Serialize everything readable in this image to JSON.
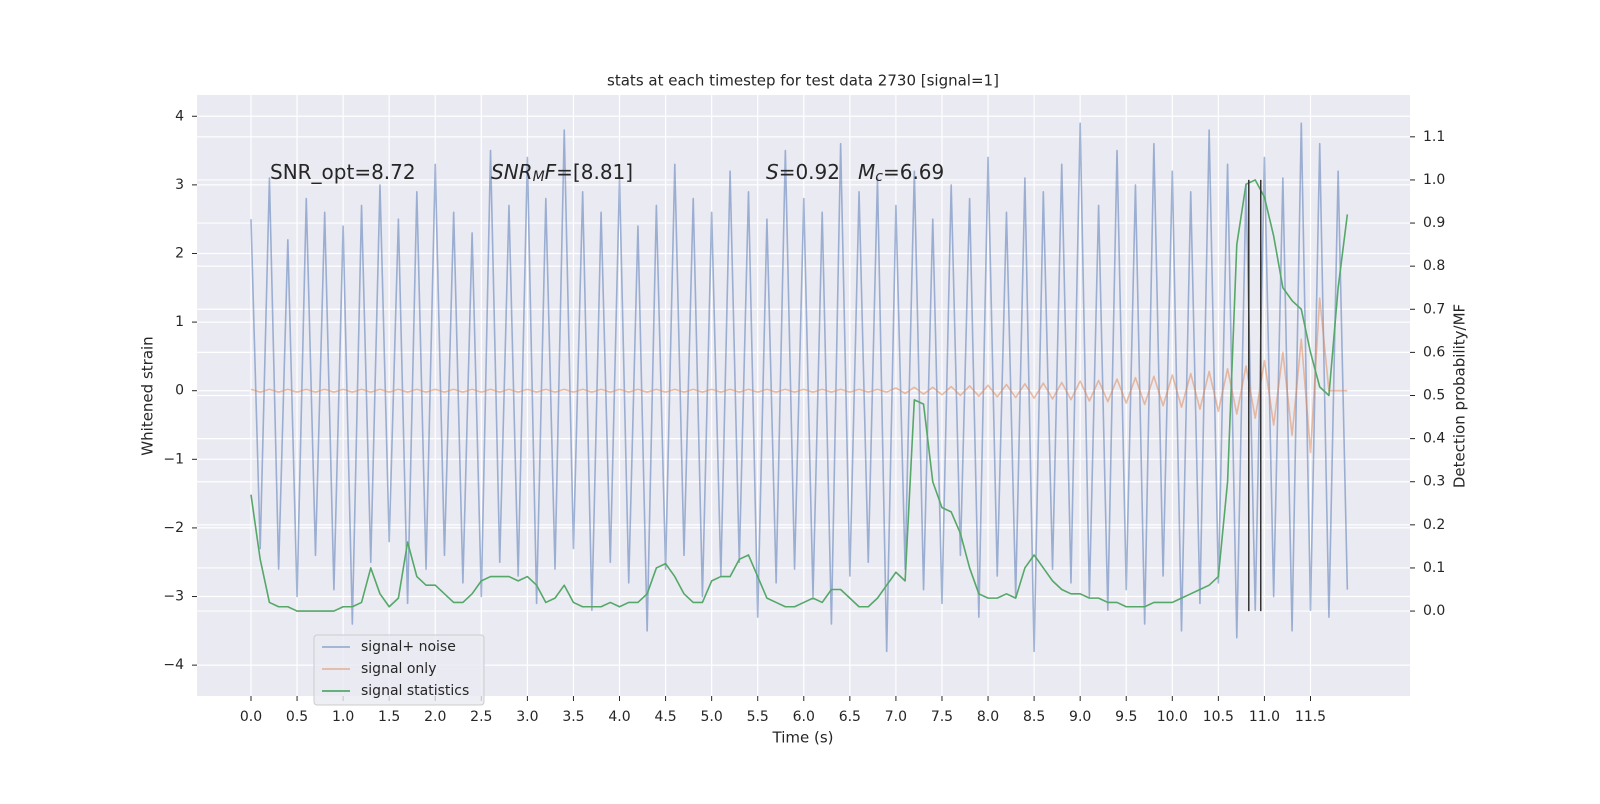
{
  "chart_data": {
    "type": "line",
    "title": "stats at each timestep for test data 2730 [signal=1]",
    "x_label": "Time (s)",
    "y_label": "Whitened strain",
    "y2_label": "Detection probability/MF",
    "grid": true,
    "background": "#eaeaf2",
    "legend": "lower left",
    "xlim": [
      -0.586,
      12.58
    ],
    "ylim": [
      -4.45,
      4.31
    ],
    "y2lim": [
      -0.197,
      1.197
    ],
    "xticks": [
      {
        "value": 0,
        "label": "0.0"
      },
      {
        "value": 0.5,
        "label": "0.5"
      },
      {
        "value": 1,
        "label": "1.0"
      },
      {
        "value": 1.5,
        "label": "1.5"
      },
      {
        "value": 2,
        "label": "2.0"
      },
      {
        "value": 2.5,
        "label": "2.5"
      },
      {
        "value": 3,
        "label": "3.0"
      },
      {
        "value": 3.5,
        "label": "3.5"
      },
      {
        "value": 4,
        "label": "4.0"
      },
      {
        "value": 4.5,
        "label": "4.5"
      },
      {
        "value": 5,
        "label": "5.0"
      },
      {
        "value": 5.5,
        "label": "5.5"
      },
      {
        "value": 6,
        "label": "6.0"
      },
      {
        "value": 6.5,
        "label": "6.5"
      },
      {
        "value": 7,
        "label": "7.0"
      },
      {
        "value": 7.5,
        "label": "7.5"
      },
      {
        "value": 8,
        "label": "8.0"
      },
      {
        "value": 8.5,
        "label": "8.5"
      },
      {
        "value": 9,
        "label": "9.0"
      },
      {
        "value": 9.5,
        "label": "9.5"
      },
      {
        "value": 10,
        "label": "10.0"
      },
      {
        "value": 10.5,
        "label": "10.5"
      },
      {
        "value": 11,
        "label": "11.0"
      },
      {
        "value": 11.5,
        "label": "11.5"
      }
    ],
    "yticks": [
      {
        "value": -4,
        "label": "−4"
      },
      {
        "value": -3,
        "label": "−3"
      },
      {
        "value": -2,
        "label": "−2"
      },
      {
        "value": -1,
        "label": "−1"
      },
      0,
      1,
      2,
      3,
      4
    ],
    "y2ticks": [
      {
        "value": 0,
        "label": "0.0"
      },
      {
        "value": 0.1,
        "label": "0.1"
      },
      {
        "value": 0.2,
        "label": "0.2"
      },
      {
        "value": 0.3,
        "label": "0.3"
      },
      {
        "value": 0.4,
        "label": "0.4"
      },
      {
        "value": 0.5,
        "label": "0.5"
      },
      {
        "value": 0.6,
        "label": "0.6"
      },
      {
        "value": 0.7,
        "label": "0.7"
      },
      {
        "value": 0.8,
        "label": "0.8"
      },
      {
        "value": 0.9,
        "label": "0.9"
      },
      {
        "value": 1.0,
        "label": "1.0"
      },
      {
        "value": 1.1,
        "label": "1.1"
      }
    ],
    "x": [
      0,
      0.1,
      0.2,
      0.3,
      0.4,
      0.5,
      0.6,
      0.7,
      0.8,
      0.9,
      1,
      1.1,
      1.2,
      1.3,
      1.4,
      1.5,
      1.6,
      1.7,
      1.8,
      1.9,
      2,
      2.1,
      2.2,
      2.3,
      2.4,
      2.5,
      2.6,
      2.7,
      2.8,
      2.9,
      3,
      3.1,
      3.2,
      3.3,
      3.4,
      3.5,
      3.6,
      3.7,
      3.8,
      3.9,
      4,
      4.1,
      4.2,
      4.3,
      4.4,
      4.5,
      4.6,
      4.7,
      4.8,
      4.9,
      5,
      5.1,
      5.2,
      5.3,
      5.4,
      5.5,
      5.6,
      5.7,
      5.8,
      5.9,
      6,
      6.1,
      6.2,
      6.3,
      6.4,
      6.5,
      6.6,
      6.7,
      6.8,
      6.9,
      7,
      7.1,
      7.2,
      7.3,
      7.4,
      7.5,
      7.6,
      7.7,
      7.8,
      7.9,
      8,
      8.1,
      8.2,
      8.3,
      8.4,
      8.5,
      8.6,
      8.7,
      8.8,
      8.9,
      9,
      9.1,
      9.2,
      9.3,
      9.4,
      9.5,
      9.6,
      9.7,
      9.8,
      9.9,
      10,
      10.1,
      10.2,
      10.3,
      10.4,
      10.5,
      10.6,
      10.7,
      10.8,
      10.9,
      11,
      11.1,
      11.2,
      11.3,
      11.4,
      11.5,
      11.6,
      11.7,
      11.8,
      11.9
    ],
    "series": [
      {
        "name": "signal+ noise",
        "color": "#4c72b0",
        "opacity": 0.5,
        "values": [
          2.5,
          -2.3,
          3.1,
          -2.6,
          2.2,
          -3.0,
          2.8,
          -2.4,
          2.6,
          -2.9,
          2.4,
          -3.4,
          2.7,
          -2.5,
          3.0,
          -2.2,
          2.5,
          -3.1,
          2.9,
          -2.6,
          3.3,
          -2.4,
          2.6,
          -2.8,
          2.3,
          -3.0,
          3.5,
          -2.5,
          2.7,
          -2.7,
          3.4,
          -3.1,
          2.8,
          -2.6,
          3.8,
          -2.3,
          2.9,
          -3.2,
          2.6,
          -2.5,
          3.1,
          -2.8,
          2.4,
          -3.5,
          2.7,
          -2.6,
          3.3,
          -2.4,
          2.8,
          -3.0,
          2.6,
          -2.7,
          3.2,
          -2.5,
          2.9,
          -3.3,
          2.5,
          -2.8,
          3.5,
          -2.6,
          2.8,
          -3.0,
          2.6,
          -3.4,
          3.6,
          -2.7,
          2.9,
          -2.5,
          3.1,
          -3.8,
          2.7,
          -2.6,
          3.2,
          -2.9,
          2.5,
          -3.1,
          3.0,
          -2.4,
          2.8,
          -3.3,
          3.4,
          -2.7,
          2.6,
          -3.0,
          3.1,
          -3.8,
          2.9,
          -2.6,
          3.3,
          -2.8,
          3.9,
          -3.0,
          2.7,
          -3.2,
          3.5,
          -2.9,
          3.0,
          -3.4,
          3.6,
          -2.7,
          3.2,
          -3.5,
          2.9,
          -3.1,
          3.8,
          -2.8,
          3.3,
          -3.6,
          3.0,
          -3.2,
          3.4,
          -3.0,
          3.1,
          -3.5,
          3.9,
          -3.2,
          3.6,
          -3.3,
          3.2,
          -2.9
        ]
      },
      {
        "name": "signal only",
        "color": "#dd8452",
        "opacity": 0.5,
        "values": [
          0.02,
          -0.02,
          0.02,
          -0.02,
          0.02,
          -0.02,
          0.02,
          -0.02,
          0.02,
          -0.02,
          0.02,
          -0.02,
          0.02,
          -0.02,
          0.02,
          -0.02,
          0.02,
          -0.02,
          0.02,
          -0.02,
          0.02,
          -0.02,
          0.02,
          -0.02,
          0.02,
          -0.02,
          0.02,
          -0.02,
          0.02,
          -0.02,
          0.02,
          -0.02,
          0.02,
          -0.02,
          0.02,
          -0.02,
          0.02,
          -0.02,
          0.02,
          -0.02,
          0.02,
          -0.02,
          0.02,
          -0.02,
          0.02,
          -0.02,
          0.02,
          -0.02,
          0.02,
          -0.02,
          0.02,
          -0.02,
          0.02,
          -0.02,
          0.02,
          -0.02,
          0.02,
          -0.02,
          0.02,
          -0.02,
          0.02,
          -0.02,
          0.02,
          -0.02,
          0.02,
          -0.02,
          0.02,
          -0.02,
          0.02,
          -0.02,
          0.04,
          -0.04,
          0.05,
          -0.05,
          0.05,
          -0.06,
          0.06,
          -0.07,
          0.07,
          -0.08,
          0.08,
          -0.09,
          0.09,
          -0.1,
          0.1,
          -0.11,
          0.11,
          -0.12,
          0.12,
          -0.13,
          0.14,
          -0.15,
          0.15,
          -0.16,
          0.17,
          -0.18,
          0.19,
          -0.2,
          0.21,
          -0.22,
          0.23,
          -0.24,
          0.25,
          -0.27,
          0.28,
          -0.3,
          0.32,
          -0.34,
          0.36,
          -0.4,
          0.44,
          -0.5,
          0.56,
          -0.65,
          0.75,
          -0.9,
          1.35,
          0,
          0,
          0
        ]
      },
      {
        "name": "signal statistics",
        "color": "#55a868",
        "opacity": 1,
        "axis": "y2",
        "values": [
          0.27,
          0.12,
          0.02,
          0.01,
          0.01,
          0.0,
          0.0,
          0.0,
          0.0,
          0.0,
          0.01,
          0.01,
          0.02,
          0.1,
          0.04,
          0.01,
          0.03,
          0.16,
          0.08,
          0.06,
          0.06,
          0.04,
          0.02,
          0.02,
          0.04,
          0.07,
          0.08,
          0.08,
          0.08,
          0.07,
          0.08,
          0.06,
          0.02,
          0.03,
          0.06,
          0.02,
          0.01,
          0.01,
          0.01,
          0.02,
          0.01,
          0.02,
          0.02,
          0.04,
          0.1,
          0.11,
          0.08,
          0.04,
          0.02,
          0.02,
          0.07,
          0.08,
          0.08,
          0.12,
          0.13,
          0.08,
          0.03,
          0.02,
          0.01,
          0.01,
          0.02,
          0.03,
          0.02,
          0.05,
          0.05,
          0.03,
          0.01,
          0.01,
          0.03,
          0.06,
          0.09,
          0.07,
          0.49,
          0.48,
          0.3,
          0.24,
          0.23,
          0.18,
          0.1,
          0.04,
          0.03,
          0.03,
          0.04,
          0.03,
          0.1,
          0.13,
          0.1,
          0.07,
          0.05,
          0.04,
          0.04,
          0.03,
          0.03,
          0.02,
          0.02,
          0.01,
          0.01,
          0.01,
          0.02,
          0.02,
          0.02,
          0.03,
          0.04,
          0.05,
          0.06,
          0.08,
          0.3,
          0.85,
          0.99,
          1.0,
          0.96,
          0.87,
          0.75,
          0.72,
          0.7,
          0.6,
          0.52,
          0.5,
          0.75,
          0.92
        ]
      }
    ],
    "vlines": {
      "x": [
        10.83,
        10.96
      ],
      "color": "#333333"
    },
    "annotations": [
      {
        "parts": [
          {
            "text": "SNR_opt=8.72",
            "style": "normal"
          }
        ]
      },
      {
        "parts": [
          {
            "text": "SNR",
            "style": "italic"
          },
          {
            "text": "M",
            "style": "italic-sub"
          },
          {
            "text": "F",
            "style": "italic"
          },
          {
            "text": "=[8.81]",
            "style": "normal"
          }
        ]
      },
      {
        "parts": [
          {
            "text": "S",
            "style": "italic"
          },
          {
            "text": "=0.92",
            "style": "normal"
          }
        ]
      },
      {
        "parts": [
          {
            "text": "M",
            "style": "italic"
          },
          {
            "text": "c",
            "style": "italic-sub"
          },
          {
            "text": "=6.69",
            "style": "normal"
          }
        ]
      }
    ]
  }
}
